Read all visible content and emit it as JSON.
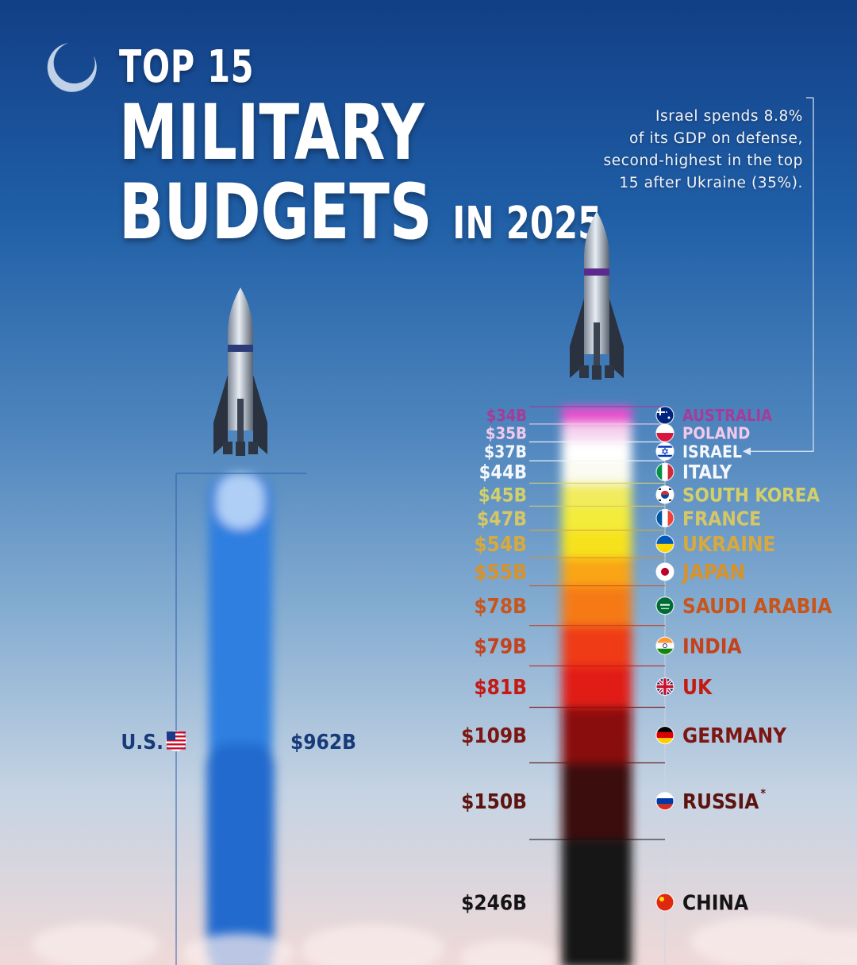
{
  "title": {
    "line1": "TOP 15",
    "line2": "MILITARY",
    "line3": "BUDGETS",
    "line3_suffix": "IN 2025"
  },
  "annotation": {
    "lines": [
      "Israel spends 8.8%",
      "of its GDP on defense,",
      "second-highest in the top",
      "15 after Ukraine (35%)."
    ]
  },
  "chart_data": {
    "type": "bar",
    "unit": "USD billions",
    "categories": [
      "U.S.",
      "China",
      "Russia*",
      "Germany",
      "UK",
      "India",
      "Saudi Arabia",
      "Japan",
      "Ukraine",
      "France",
      "South Korea",
      "Italy",
      "Israel",
      "Poland",
      "Australia"
    ],
    "country_labels": [
      "U.S.",
      "CHINA",
      "RUSSIA",
      "GERMANY",
      "UK",
      "INDIA",
      "SAUDI ARABIA",
      "JAPAN",
      "UKRAINE",
      "FRANCE",
      "SOUTH KOREA",
      "ITALY",
      "ISRAEL",
      "POLAND",
      "AUSTRALIA"
    ],
    "values": [
      962,
      246,
      150,
      109,
      81,
      79,
      78,
      55,
      54,
      47,
      45,
      44,
      37,
      35,
      34
    ],
    "value_labels": [
      "$962B",
      "$246B",
      "$150B",
      "$109B",
      "$81B",
      "$79B",
      "$78B",
      "$55B",
      "$54B",
      "$47B",
      "$45B",
      "$44B",
      "$37B",
      "$35B",
      "$34B"
    ],
    "colors": {
      "us_plume": "#2f7fe0",
      "China": "#141414",
      "Russia*": "#3a0d0a",
      "Germany": "#8a0f0d",
      "UK": "#e11a12",
      "India": "#ef3a14",
      "Saudi Arabia": "#f57a12",
      "Japan": "#f9a514",
      "Ukraine": "#f6e21a",
      "France": "#f3ec3b",
      "South Korea": "#f1ec5e",
      "Italy": "#fbfbf2",
      "Israel": "#ffffff",
      "Poland": "#f6d6f0",
      "Australia": "#e94fcf"
    },
    "label_colors": {
      "U.S.": "#163b78",
      "China": "#141414",
      "Russia*": "#5c1410",
      "Germany": "#7c1612",
      "UK": "#c41a12",
      "India": "#c4421c",
      "Saudi Arabia": "#c8561c",
      "Japan": "#d8922a",
      "Ukraine": "#d8a93c",
      "France": "#d6c766",
      "South Korea": "#d3d06a",
      "Italy": "#f4f7fb",
      "Israel": "#f4f7fb",
      "Poland": "#f2c9ea",
      "Australia": "#a63b98"
    },
    "flags": [
      "flag-us-icon",
      "flag-china-icon",
      "flag-russia-icon",
      "flag-germany-icon",
      "flag-uk-icon",
      "flag-india-icon",
      "flag-saudi-arabia-icon",
      "flag-japan-icon",
      "flag-ukraine-icon",
      "flag-france-icon",
      "flag-south-korea-icon",
      "flag-italy-icon",
      "flag-israel-icon",
      "flag-poland-icon",
      "flag-australia-icon"
    ]
  }
}
